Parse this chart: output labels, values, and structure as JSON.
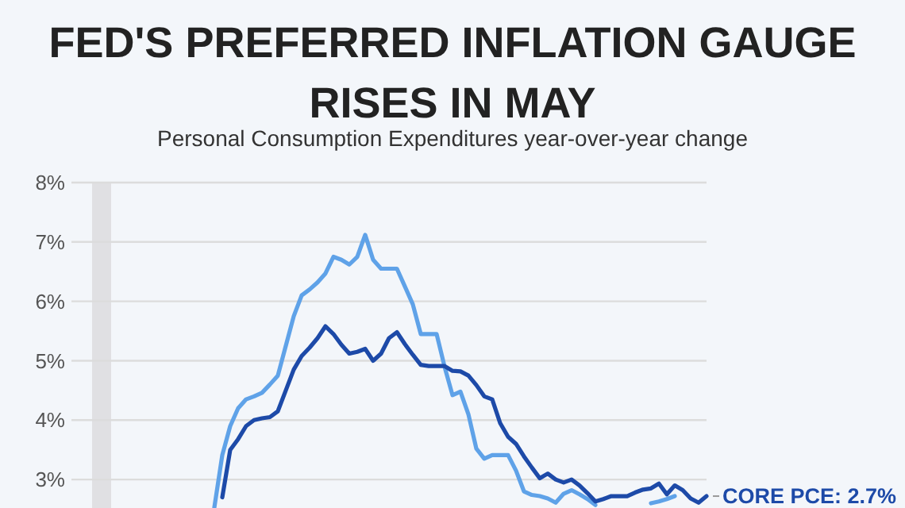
{
  "chart_data": {
    "type": "line",
    "title": "FED'S PREFERRED INFLATION GAUGE RISES IN MAY",
    "subtitle": "Personal Consumption Expenditures year-over-year change",
    "categories": [
      null,
      null,
      null,
      null,
      null,
      null,
      null,
      null,
      null,
      null,
      null,
      null,
      null,
      null,
      null,
      null,
      null,
      null,
      null,
      null,
      null,
      null,
      null,
      null,
      null,
      null,
      null,
      null,
      null,
      null,
      null,
      null,
      null,
      null,
      null,
      null,
      null,
      null,
      null,
      null,
      null,
      null,
      null,
      null,
      null,
      null,
      null,
      null,
      null,
      null,
      null,
      null,
      null,
      null,
      null,
      null,
      null,
      null,
      null,
      null,
      null,
      null,
      null,
      null,
      null,
      null,
      null,
      null,
      null,
      null,
      null,
      null,
      null,
      null,
      null,
      null,
      null,
      null,
      null,
      null,
      null
    ],
    "series": [
      {
        "color": "#5fa2e8",
        "values": [
          null,
          null,
          null,
          null,
          null,
          null,
          null,
          null,
          null,
          null,
          null,
          null,
          null,
          null,
          null,
          null,
          null,
          null,
          2.53,
          3.41,
          3.9,
          4.2,
          4.35,
          4.4,
          4.46,
          4.6,
          4.75,
          5.25,
          5.75,
          6.1,
          6.2,
          6.32,
          6.47,
          6.75,
          6.7,
          6.62,
          6.75,
          7.12,
          6.7,
          6.55,
          6.55,
          6.55,
          6.25,
          5.95,
          5.45,
          5.45,
          5.45,
          4.9,
          4.42,
          4.48,
          4.1,
          3.52,
          3.35,
          3.41,
          3.41,
          3.41,
          3.15,
          2.8,
          2.74,
          2.72,
          2.68,
          2.61,
          2.76,
          2.82,
          2.75,
          2.67,
          2.57,
          null,
          null,
          null,
          null,
          null,
          null,
          2.6,
          2.63,
          2.67,
          2.72,
          null,
          null,
          null,
          null
        ]
      },
      {
        "color": "#1d4aa8",
        "values": [
          null,
          null,
          null,
          null,
          null,
          null,
          null,
          null,
          null,
          null,
          null,
          null,
          null,
          null,
          null,
          null,
          null,
          null,
          null,
          2.7,
          3.5,
          3.68,
          3.9,
          4.0,
          4.03,
          4.05,
          4.15,
          4.5,
          4.85,
          5.08,
          5.22,
          5.38,
          5.58,
          5.45,
          5.27,
          5.12,
          5.15,
          5.2,
          5.0,
          5.12,
          5.38,
          5.48,
          5.28,
          5.1,
          4.93,
          4.91,
          4.91,
          4.91,
          4.83,
          4.82,
          4.75,
          4.59,
          4.4,
          4.35,
          3.95,
          3.72,
          3.6,
          3.39,
          3.2,
          3.02,
          3.1,
          3.0,
          2.95,
          3.0,
          2.9,
          2.77,
          2.63,
          2.67,
          2.72,
          2.72,
          2.72,
          2.78,
          2.83,
          2.85,
          2.93,
          2.75,
          2.9,
          2.82,
          2.68,
          2.61,
          2.72
        ]
      }
    ],
    "ylim": [
      2.52,
      8
    ],
    "yticks": [
      {
        "value": 3,
        "label": "3%"
      },
      {
        "value": 4,
        "label": "4%"
      },
      {
        "value": 5,
        "label": "5%"
      },
      {
        "value": 6,
        "label": "6%"
      },
      {
        "value": 7,
        "label": "7%"
      },
      {
        "value": 8,
        "label": "8%"
      }
    ],
    "tick_labels": "y",
    "grid": "y",
    "annotations": [
      "CORE PCE: 2.7%"
    ]
  }
}
